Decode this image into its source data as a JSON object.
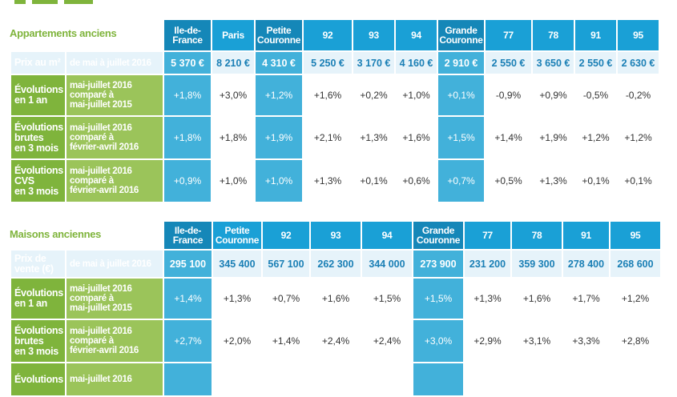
{
  "apartments": {
    "title": "Appartements anciens",
    "columns": [
      "Ile-de-\nFrance",
      "Paris",
      "Petite\nCouronne",
      "92",
      "93",
      "94",
      "Grande\nCouronne",
      "77",
      "78",
      "91",
      "95"
    ],
    "rows": [
      {
        "label": "Prix au m²",
        "sub": "de mai à juillet 2016",
        "values": [
          "5 370 €",
          "8 210 €",
          "4 310 €",
          "5 250 €",
          "3 170 €",
          "4 160 €",
          "2 910 €",
          "2 550 €",
          "3 650 €",
          "2 550 €",
          "2 630 €"
        ]
      },
      {
        "label": "Évolutions\nen 1 an",
        "sub": "mai-juillet 2016\ncomparé à\nmai-juillet 2015",
        "values": [
          "+1,8%",
          "+3,0%",
          "+1,2%",
          "+1,6%",
          "+0,2%",
          "+1,0%",
          "+0,1%",
          "-0,9%",
          "+0,9%",
          "-0,5%",
          "-0,2%"
        ]
      },
      {
        "label": "Évolutions\nbrutes\nen 3 mois",
        "sub": "mai-juillet 2016\ncomparé à\nfévrier-avril 2016",
        "values": [
          "+1,8%",
          "+1,8%",
          "+1,9%",
          "+2,1%",
          "+1,3%",
          "+1,6%",
          "+1,5%",
          "+1,4%",
          "+1,9%",
          "+1,2%",
          "+1,2%"
        ]
      },
      {
        "label": "Évolutions\nCVS\nen 3 mois",
        "sub": "mai-juillet 2016\ncomparé à\nfévrier-avril 2016",
        "values": [
          "+0,9%",
          "+1,0%",
          "+1,0%",
          "+1,3%",
          "+0,1%",
          "+0,6%",
          "+0,7%",
          "+0,5%",
          "+1,3%",
          "+0,1%",
          "+0,1%"
        ]
      }
    ]
  },
  "houses": {
    "title": "Maisons anciennes",
    "columns": [
      "Ile-de-\nFrance",
      "Petite\nCouronne",
      "92",
      "93",
      "94",
      "Grande\nCouronne",
      "77",
      "78",
      "91",
      "95"
    ],
    "rows": [
      {
        "label": "Prix de\nvente (€)",
        "sub": "de mai à juillet 2016",
        "values": [
          "295 100",
          "345 400",
          "567 100",
          "262 300",
          "344 000",
          "273 900",
          "231 200",
          "359 300",
          "278 400",
          "268 600"
        ]
      },
      {
        "label": "Évolutions\nen 1 an",
        "sub": "mai-juillet 2016\ncomparé à\nmai-juillet 2015",
        "values": [
          "+1,4%",
          "+1,3%",
          "+0,7%",
          "+1,6%",
          "+1,5%",
          "+1,5%",
          "+1,3%",
          "+1,6%",
          "+1,7%",
          "+1,2%"
        ]
      },
      {
        "label": "Évolutions\nbrutes\nen 3 mois",
        "sub": "mai-juillet 2016\ncomparé à\nfévrier-avril 2016",
        "values": [
          "+2,7%",
          "+2,0%",
          "+1,4%",
          "+2,4%",
          "+2,4%",
          "+3,0%",
          "+2,9%",
          "+3,1%",
          "+3,3%",
          "+2,8%"
        ]
      },
      {
        "label": "Évolutions",
        "sub": "mai-juillet 2016",
        "values": [
          "",
          "",
          "",
          "",
          "",
          "",
          "",
          "",
          "",
          ""
        ]
      }
    ]
  }
}
